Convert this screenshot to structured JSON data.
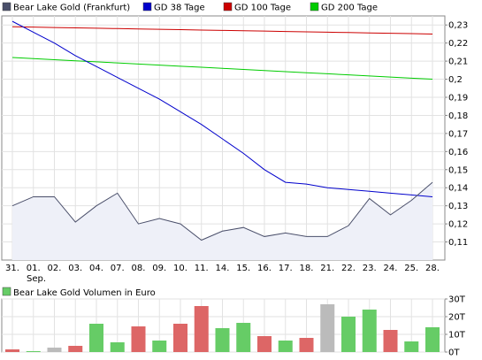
{
  "chart_data": [
    {
      "type": "line",
      "categories": [
        "31.",
        "01.",
        "02.",
        "03.",
        "04.",
        "07.",
        "08.",
        "09.",
        "10.",
        "11.",
        "14.",
        "15.",
        "16.",
        "17.",
        "18.",
        "21.",
        "22.",
        "23.",
        "24.",
        "25.",
        "28."
      ],
      "month_label": "Sep.",
      "ylim": [
        0.1,
        0.235
      ],
      "yticks": [
        0.11,
        0.12,
        0.13,
        0.14,
        0.15,
        0.16,
        0.17,
        0.18,
        0.19,
        0.2,
        0.21,
        0.22,
        0.23
      ],
      "ytick_labels": [
        "0,11",
        "0,12",
        "0,13",
        "0,14",
        "0,15",
        "0,16",
        "0,17",
        "0,18",
        "0,19",
        "0,2",
        "0,21",
        "0,22",
        "0,23"
      ],
      "grid": true,
      "legend_position": "top-left",
      "series": [
        {
          "name": "Bear Lake Gold (Frankfurt)",
          "color": "#4a4f6a",
          "fill": "#eef0f8",
          "values": [
            0.13,
            0.135,
            0.135,
            0.121,
            0.13,
            0.137,
            0.12,
            0.123,
            0.12,
            0.111,
            0.116,
            0.118,
            0.113,
            0.115,
            0.113,
            0.113,
            0.119,
            0.134,
            0.125,
            0.133,
            0.143
          ]
        },
        {
          "name": "GD 38 Tage",
          "color": "#0000cc",
          "values": [
            0.232,
            0.226,
            0.22,
            0.213,
            0.207,
            0.201,
            0.195,
            0.189,
            0.182,
            0.175,
            0.167,
            0.159,
            0.15,
            0.143,
            0.142,
            0.14,
            0.139,
            0.138,
            0.137,
            0.136,
            0.135
          ]
        },
        {
          "name": "GD 100 Tage",
          "color": "#cc0000",
          "values": [
            0.229,
            0.2288,
            0.2286,
            0.2284,
            0.2282,
            0.228,
            0.2278,
            0.2276,
            0.2274,
            0.2272,
            0.227,
            0.2268,
            0.2266,
            0.2264,
            0.2262,
            0.226,
            0.2258,
            0.2256,
            0.2254,
            0.2252,
            0.225
          ]
        },
        {
          "name": "GD 200 Tage",
          "color": "#00cc00",
          "values": [
            0.212,
            0.2114,
            0.2108,
            0.2102,
            0.2096,
            0.209,
            0.2084,
            0.2078,
            0.2072,
            0.2066,
            0.206,
            0.2054,
            0.2048,
            0.2042,
            0.2036,
            0.203,
            0.2024,
            0.2018,
            0.2012,
            0.2006,
            0.2
          ]
        }
      ]
    },
    {
      "type": "bar",
      "categories": [
        "31.",
        "01.",
        "02.",
        "03.",
        "04.",
        "07.",
        "08.",
        "09.",
        "10.",
        "11.",
        "14.",
        "15.",
        "16.",
        "17.",
        "18.",
        "21.",
        "22.",
        "23.",
        "24.",
        "25.",
        "28."
      ],
      "legend": "Bear Lake Gold Volumen in Euro",
      "legend_color": "#66cc66",
      "ylim": [
        0,
        30
      ],
      "yticks": [
        0,
        10,
        20,
        30
      ],
      "ytick_labels": [
        "0T",
        "10T",
        "20T",
        "30T"
      ],
      "grid": true,
      "values": [
        1.5,
        0.5,
        2.5,
        3.5,
        16,
        5.5,
        14.5,
        6.5,
        16,
        26,
        13.5,
        16.5,
        9,
        6.5,
        8,
        27,
        20,
        24,
        12.5,
        6,
        14
      ],
      "colors": [
        "#dd6666",
        "#66cc66",
        "#bbbbbb",
        "#dd6666",
        "#66cc66",
        "#66cc66",
        "#dd6666",
        "#66cc66",
        "#dd6666",
        "#dd6666",
        "#66cc66",
        "#66cc66",
        "#dd6666",
        "#66cc66",
        "#dd6666",
        "#bbbbbb",
        "#66cc66",
        "#66cc66",
        "#dd6666",
        "#66cc66",
        "#66cc66"
      ]
    }
  ]
}
